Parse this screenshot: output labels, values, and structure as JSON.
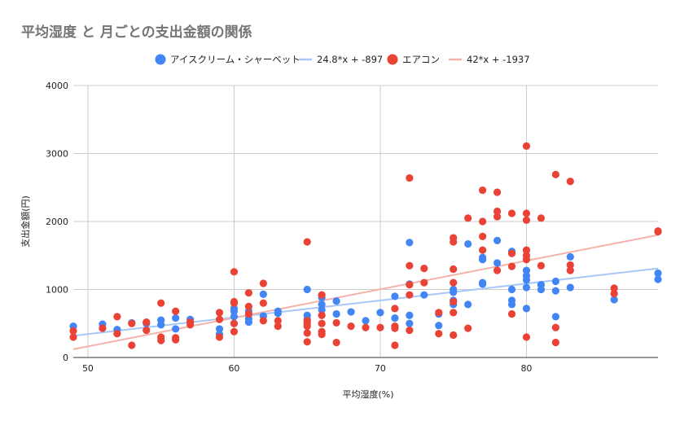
{
  "chart_data": {
    "type": "scatter",
    "title": "平均湿度 と 月ごとの支出金額の関係",
    "xlabel": "平均湿度(%)",
    "ylabel": "支出金額(円)",
    "xlim": [
      49,
      89
    ],
    "ylim": [
      0,
      4000
    ],
    "x_ticks": [
      "50",
      "60",
      "70",
      "80"
    ],
    "y_ticks": [
      "0",
      "1000",
      "2000",
      "3000",
      "4000"
    ],
    "x_tick_values": [
      50,
      60,
      70,
      80
    ],
    "y_tick_values": [
      0,
      1000,
      2000,
      3000,
      4000
    ],
    "grid": true,
    "legend_position": "top",
    "series": [
      {
        "name": "アイスクリーム・シャーベット",
        "color": "#4285f4",
        "points": [
          [
            49,
            460
          ],
          [
            51,
            490
          ],
          [
            52,
            410
          ],
          [
            53,
            510
          ],
          [
            54,
            500
          ],
          [
            55,
            480
          ],
          [
            55,
            550
          ],
          [
            56,
            420
          ],
          [
            56,
            580
          ],
          [
            57,
            560
          ],
          [
            59,
            420
          ],
          [
            59,
            340
          ],
          [
            60,
            500
          ],
          [
            60,
            600
          ],
          [
            60,
            680
          ],
          [
            60,
            720
          ],
          [
            61,
            520
          ],
          [
            61,
            570
          ],
          [
            61,
            680
          ],
          [
            62,
            610
          ],
          [
            62,
            930
          ],
          [
            63,
            650
          ],
          [
            63,
            680
          ],
          [
            65,
            620
          ],
          [
            65,
            560
          ],
          [
            65,
            1000
          ],
          [
            66,
            700
          ],
          [
            66,
            780
          ],
          [
            66,
            880
          ],
          [
            67,
            640
          ],
          [
            67,
            830
          ],
          [
            68,
            670
          ],
          [
            69,
            540
          ],
          [
            70,
            660
          ],
          [
            71,
            580
          ],
          [
            71,
            900
          ],
          [
            72,
            1080
          ],
          [
            72,
            1690
          ],
          [
            72,
            500
          ],
          [
            72,
            620
          ],
          [
            73,
            920
          ],
          [
            74,
            470
          ],
          [
            74,
            640
          ],
          [
            75,
            780
          ],
          [
            75,
            840
          ],
          [
            75,
            960
          ],
          [
            75,
            1000
          ],
          [
            76,
            1670
          ],
          [
            76,
            780
          ],
          [
            77,
            1100
          ],
          [
            77,
            1080
          ],
          [
            77,
            1440
          ],
          [
            77,
            1470
          ],
          [
            78,
            1720
          ],
          [
            78,
            1390
          ],
          [
            79,
            1560
          ],
          [
            79,
            1000
          ],
          [
            79,
            840
          ],
          [
            79,
            780
          ],
          [
            80,
            1280
          ],
          [
            80,
            1200
          ],
          [
            80,
            1140
          ],
          [
            80,
            1030
          ],
          [
            80,
            720
          ],
          [
            81,
            1000
          ],
          [
            81,
            1070
          ],
          [
            82,
            1120
          ],
          [
            82,
            980
          ],
          [
            82,
            600
          ],
          [
            83,
            1480
          ],
          [
            83,
            1030
          ],
          [
            86,
            850
          ],
          [
            89,
            1240
          ],
          [
            89,
            1150
          ]
        ]
      },
      {
        "name": "24.8*x + -897",
        "color": "#a7c7f9",
        "kind": "trendline",
        "slope": 24.8,
        "intercept": -897
      },
      {
        "name": "エアコン",
        "color": "#ea4335",
        "points": [
          [
            49,
            300
          ],
          [
            49,
            390
          ],
          [
            51,
            430
          ],
          [
            52,
            600
          ],
          [
            52,
            350
          ],
          [
            53,
            180
          ],
          [
            53,
            500
          ],
          [
            54,
            400
          ],
          [
            54,
            520
          ],
          [
            55,
            800
          ],
          [
            55,
            300
          ],
          [
            55,
            250
          ],
          [
            56,
            680
          ],
          [
            56,
            260
          ],
          [
            56,
            290
          ],
          [
            57,
            480
          ],
          [
            57,
            520
          ],
          [
            59,
            660
          ],
          [
            59,
            300
          ],
          [
            59,
            560
          ],
          [
            60,
            1260
          ],
          [
            60,
            820
          ],
          [
            60,
            800
          ],
          [
            60,
            380
          ],
          [
            60,
            500
          ],
          [
            61,
            950
          ],
          [
            61,
            750
          ],
          [
            61,
            640
          ],
          [
            62,
            1090
          ],
          [
            62,
            800
          ],
          [
            62,
            540
          ],
          [
            63,
            540
          ],
          [
            63,
            460
          ],
          [
            65,
            1700
          ],
          [
            65,
            540
          ],
          [
            65,
            500
          ],
          [
            65,
            460
          ],
          [
            65,
            360
          ],
          [
            65,
            230
          ],
          [
            66,
            920
          ],
          [
            66,
            620
          ],
          [
            66,
            500
          ],
          [
            66,
            380
          ],
          [
            66,
            340
          ],
          [
            67,
            510
          ],
          [
            67,
            220
          ],
          [
            68,
            460
          ],
          [
            69,
            440
          ],
          [
            70,
            440
          ],
          [
            71,
            720
          ],
          [
            71,
            460
          ],
          [
            71,
            430
          ],
          [
            71,
            180
          ],
          [
            72,
            2640
          ],
          [
            72,
            1350
          ],
          [
            72,
            1070
          ],
          [
            72,
            920
          ],
          [
            72,
            400
          ],
          [
            73,
            1310
          ],
          [
            73,
            1100
          ],
          [
            74,
            660
          ],
          [
            74,
            350
          ],
          [
            75,
            1760
          ],
          [
            75,
            1700
          ],
          [
            75,
            1300
          ],
          [
            75,
            1100
          ],
          [
            75,
            820
          ],
          [
            75,
            660
          ],
          [
            75,
            330
          ],
          [
            76,
            2050
          ],
          [
            76,
            430
          ],
          [
            77,
            2460
          ],
          [
            77,
            2000
          ],
          [
            77,
            1780
          ],
          [
            77,
            1580
          ],
          [
            78,
            2430
          ],
          [
            78,
            2150
          ],
          [
            78,
            2070
          ],
          [
            78,
            1280
          ],
          [
            79,
            2120
          ],
          [
            79,
            1530
          ],
          [
            79,
            1340
          ],
          [
            79,
            640
          ],
          [
            80,
            3110
          ],
          [
            80,
            2120
          ],
          [
            80,
            2020
          ],
          [
            80,
            1580
          ],
          [
            80,
            1500
          ],
          [
            80,
            1440
          ],
          [
            80,
            300
          ],
          [
            81,
            2050
          ],
          [
            81,
            1350
          ],
          [
            82,
            2690
          ],
          [
            82,
            440
          ],
          [
            82,
            220
          ],
          [
            83,
            2590
          ],
          [
            83,
            1360
          ],
          [
            83,
            1280
          ],
          [
            86,
            1020
          ],
          [
            86,
            940
          ],
          [
            89,
            1850
          ],
          [
            89,
            1860
          ]
        ]
      },
      {
        "name": "42*x + -1937",
        "color": "#f5b2ab",
        "kind": "trendline",
        "slope": 42,
        "intercept": -1937
      }
    ]
  }
}
